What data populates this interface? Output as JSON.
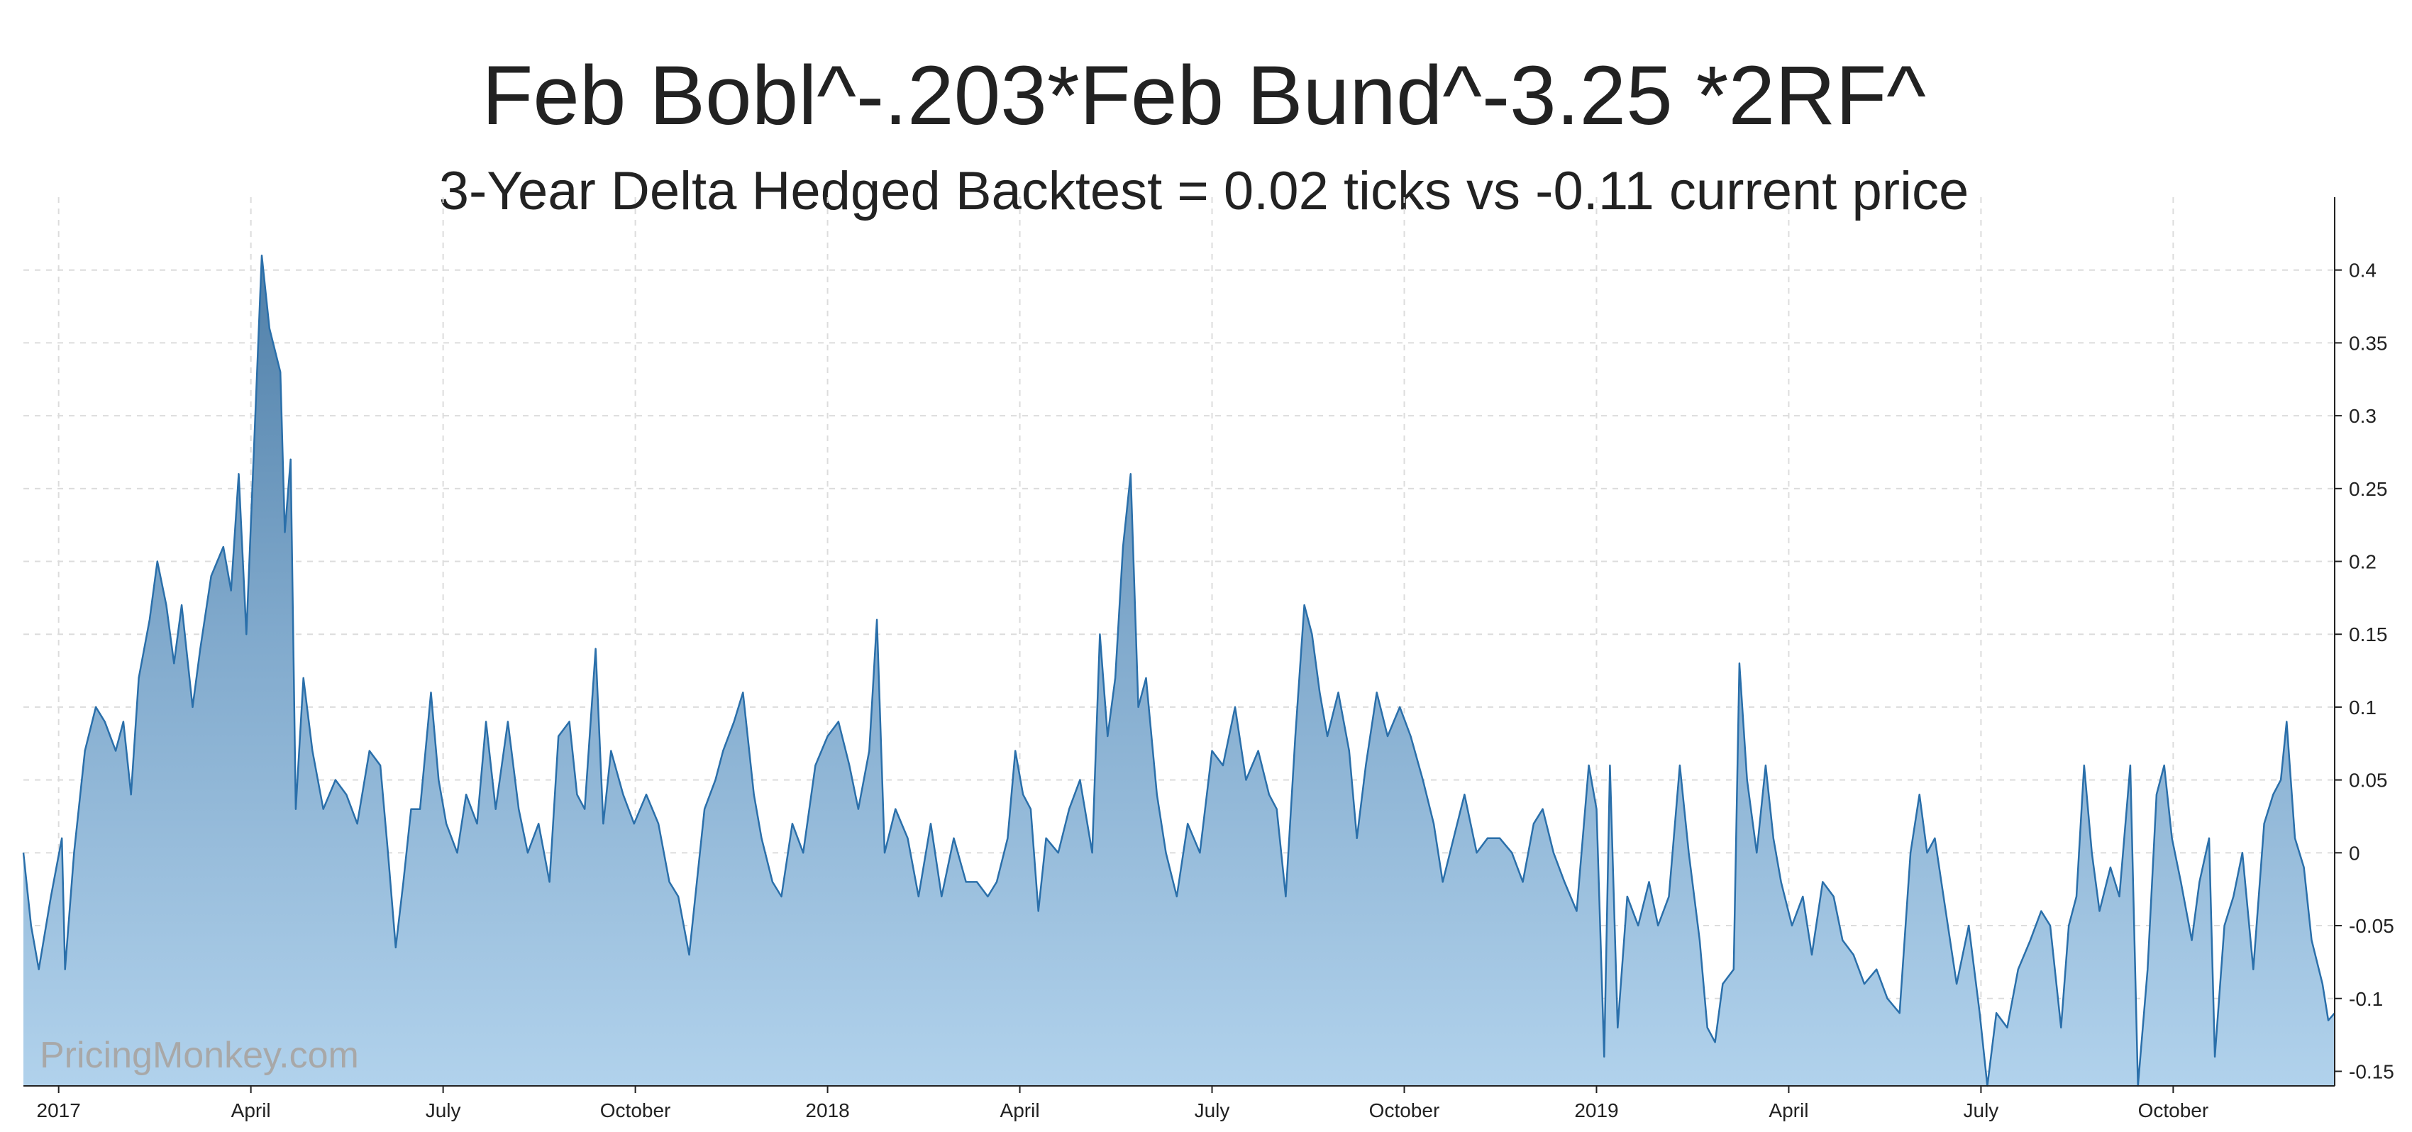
{
  "chart_data": {
    "type": "area",
    "title": "Feb Bobl^-.203*Feb Bund^-3.25 *2RF^",
    "subtitle": "3-Year Delta Hedged Backtest = 0.02 ticks vs -0.11 current price",
    "watermark": "PricingMonkey.com",
    "grid": true,
    "color": "#2a6faa",
    "xlim": [
      -0.55,
      35.52
    ],
    "ylim": [
      -0.16,
      0.45
    ],
    "xticks": [
      {
        "value": 0,
        "label": "2017"
      },
      {
        "value": 3,
        "label": "April"
      },
      {
        "value": 6,
        "label": "July"
      },
      {
        "value": 9,
        "label": "October"
      },
      {
        "value": 12,
        "label": "2018"
      },
      {
        "value": 15,
        "label": "April"
      },
      {
        "value": 18,
        "label": "July"
      },
      {
        "value": 21,
        "label": "October"
      },
      {
        "value": 24,
        "label": "2019"
      },
      {
        "value": 27,
        "label": "April"
      },
      {
        "value": 30,
        "label": "July"
      },
      {
        "value": 33,
        "label": "October"
      }
    ],
    "yticks": [
      -0.15,
      -0.1,
      -0.05,
      0,
      0.05,
      0.1,
      0.15,
      0.2,
      0.25,
      0.3,
      0.35,
      0.4
    ],
    "x": [
      -0.55,
      -0.43,
      -0.31,
      -0.12,
      0.05,
      0.1,
      0.24,
      0.41,
      0.58,
      0.72,
      0.89,
      1.01,
      1.13,
      1.25,
      1.42,
      1.54,
      1.68,
      1.8,
      1.92,
      2.09,
      2.21,
      2.38,
      2.57,
      2.69,
      2.81,
      2.93,
      3.05,
      3.17,
      3.29,
      3.46,
      3.53,
      3.62,
      3.7,
      3.82,
      3.96,
      4.13,
      4.32,
      4.49,
      4.66,
      4.85,
      5.02,
      5.14,
      5.26,
      5.38,
      5.5,
      5.64,
      5.81,
      5.93,
      6.05,
      6.22,
      6.36,
      6.53,
      6.67,
      6.82,
      7.01,
      7.18,
      7.32,
      7.49,
      7.66,
      7.8,
      7.97,
      8.09,
      8.21,
      8.38,
      8.5,
      8.62,
      8.81,
      8.98,
      9.17,
      9.36,
      9.53,
      9.67,
      9.84,
      9.96,
      10.08,
      10.25,
      10.37,
      10.54,
      10.68,
      10.85,
      10.97,
      11.14,
      11.28,
      11.45,
      11.62,
      11.81,
      12.0,
      12.17,
      12.34,
      12.48,
      12.65,
      12.77,
      12.89,
      13.06,
      13.25,
      13.42,
      13.61,
      13.78,
      13.97,
      14.16,
      14.33,
      14.5,
      14.64,
      14.81,
      14.93,
      15.05,
      15.17,
      15.29,
      15.41,
      15.6,
      15.77,
      15.94,
      16.13,
      16.25,
      16.37,
      16.49,
      16.61,
      16.73,
      16.85,
      16.97,
      17.14,
      17.28,
      17.45,
      17.62,
      17.81,
      18.0,
      18.17,
      18.36,
      18.53,
      18.72,
      18.89,
      19.01,
      19.15,
      19.3,
      19.44,
      19.56,
      19.68,
      19.8,
      19.97,
      20.14,
      20.26,
      20.4,
      20.57,
      20.74,
      20.93,
      21.1,
      21.29,
      21.46,
      21.6,
      21.77,
      21.94,
      22.13,
      22.3,
      22.49,
      22.68,
      22.85,
      23.02,
      23.16,
      23.33,
      23.5,
      23.69,
      23.88,
      24.0,
      24.12,
      24.21,
      24.33,
      24.48,
      24.65,
      24.82,
      24.96,
      25.13,
      25.3,
      25.44,
      25.61,
      25.73,
      25.85,
      25.97,
      26.14,
      26.23,
      26.35,
      26.5,
      26.64,
      26.76,
      26.88,
      27.05,
      27.22,
      27.36,
      27.53,
      27.7,
      27.84,
      28.01,
      28.18,
      28.37,
      28.54,
      28.73,
      28.9,
      29.04,
      29.16,
      29.28,
      29.45,
      29.62,
      29.81,
      29.98,
      30.1,
      30.24,
      30.41,
      30.58,
      30.77,
      30.94,
      31.08,
      31.25,
      31.37,
      31.49,
      31.61,
      31.73,
      31.85,
      32.02,
      32.16,
      32.33,
      32.45,
      32.6,
      32.74,
      32.86,
      32.98,
      33.12,
      33.29,
      33.41,
      33.56,
      33.65,
      33.8,
      33.94,
      34.08,
      34.25,
      34.42,
      34.56,
      34.68,
      34.77,
      34.9,
      35.04,
      35.16,
      35.33,
      35.42,
      35.52
    ],
    "values": [
      0.0,
      -0.05,
      -0.08,
      -0.03,
      0.01,
      -0.08,
      0.0,
      0.07,
      0.1,
      0.09,
      0.07,
      0.09,
      0.04,
      0.12,
      0.16,
      0.2,
      0.17,
      0.13,
      0.17,
      0.1,
      0.14,
      0.19,
      0.21,
      0.18,
      0.26,
      0.15,
      0.28,
      0.41,
      0.36,
      0.33,
      0.22,
      0.27,
      0.03,
      0.12,
      0.07,
      0.03,
      0.05,
      0.04,
      0.02,
      0.07,
      0.06,
      0.0,
      -0.065,
      -0.02,
      0.03,
      0.03,
      0.11,
      0.05,
      0.02,
      0.0,
      0.04,
      0.02,
      0.09,
      0.03,
      0.09,
      0.03,
      0.0,
      0.02,
      -0.02,
      0.08,
      0.09,
      0.04,
      0.03,
      0.14,
      0.02,
      0.07,
      0.04,
      0.02,
      0.04,
      0.02,
      -0.02,
      -0.03,
      -0.07,
      -0.02,
      0.03,
      0.05,
      0.07,
      0.09,
      0.11,
      0.04,
      0.01,
      -0.02,
      -0.03,
      0.02,
      0.0,
      0.06,
      0.08,
      0.09,
      0.06,
      0.03,
      0.07,
      0.16,
      0.0,
      0.03,
      0.01,
      -0.03,
      0.02,
      -0.03,
      0.01,
      -0.02,
      -0.02,
      -0.03,
      -0.02,
      0.01,
      0.07,
      0.04,
      0.03,
      -0.04,
      0.01,
      0.0,
      0.03,
      0.05,
      0.0,
      0.15,
      0.08,
      0.12,
      0.21,
      0.26,
      0.1,
      0.12,
      0.04,
      0.0,
      -0.03,
      0.02,
      0.0,
      0.07,
      0.06,
      0.1,
      0.05,
      0.07,
      0.04,
      0.03,
      -0.03,
      0.08,
      0.17,
      0.15,
      0.11,
      0.08,
      0.11,
      0.07,
      0.01,
      0.06,
      0.11,
      0.08,
      0.1,
      0.08,
      0.05,
      0.02,
      -0.02,
      0.01,
      0.04,
      0.0,
      0.01,
      0.01,
      0.0,
      -0.02,
      0.02,
      0.03,
      0.0,
      -0.02,
      -0.04,
      0.06,
      0.03,
      -0.14,
      0.06,
      -0.12,
      -0.03,
      -0.05,
      -0.02,
      -0.05,
      -0.03,
      0.06,
      0.0,
      -0.06,
      -0.12,
      -0.13,
      -0.09,
      -0.08,
      0.13,
      0.05,
      0.0,
      0.06,
      0.01,
      -0.02,
      -0.05,
      -0.03,
      -0.07,
      -0.02,
      -0.03,
      -0.06,
      -0.07,
      -0.09,
      -0.08,
      -0.1,
      -0.11,
      0.0,
      0.04,
      0.0,
      0.01,
      -0.04,
      -0.09,
      -0.05,
      -0.11,
      -0.16,
      -0.11,
      -0.12,
      -0.08,
      -0.06,
      -0.04,
      -0.05,
      -0.12,
      -0.05,
      -0.03,
      0.06,
      0.0,
      -0.04,
      -0.01,
      -0.03,
      0.06,
      -0.16,
      -0.08,
      0.04,
      0.06,
      0.01,
      -0.02,
      -0.06,
      -0.02,
      0.01,
      -0.14,
      -0.05,
      -0.03,
      0.0,
      -0.08,
      0.02,
      0.04,
      0.05,
      0.09,
      0.01,
      -0.01,
      -0.06,
      -0.09,
      -0.115,
      -0.11
    ]
  }
}
